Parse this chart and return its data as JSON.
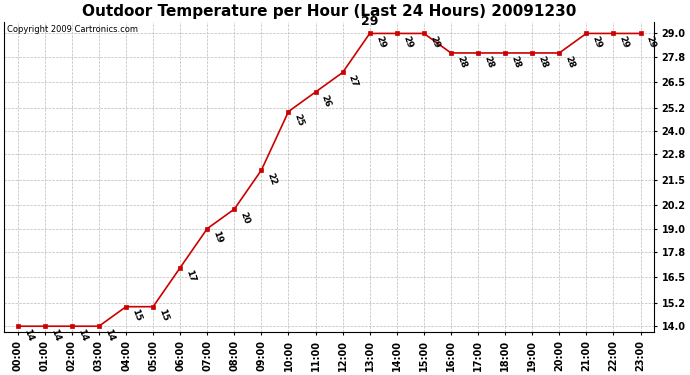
{
  "title": "Outdoor Temperature per Hour (Last 24 Hours) 20091230",
  "copyright_text": "Copyright 2009 Cartronics.com",
  "hours": [
    "00:00",
    "01:00",
    "02:00",
    "03:00",
    "04:00",
    "05:00",
    "06:00",
    "07:00",
    "08:00",
    "09:00",
    "10:00",
    "11:00",
    "12:00",
    "13:00",
    "14:00",
    "15:00",
    "16:00",
    "17:00",
    "18:00",
    "19:00",
    "20:00",
    "21:00",
    "22:00",
    "23:00"
  ],
  "temps": [
    14,
    14,
    14,
    14,
    15,
    15,
    17,
    19,
    20,
    22,
    25,
    26,
    27,
    29,
    29,
    29,
    28,
    28,
    28,
    28,
    28,
    29,
    29,
    29
  ],
  "peak_hour_index": 13,
  "peak_label": "29",
  "line_color": "#cc0000",
  "marker_color": "#cc0000",
  "bg_color": "#ffffff",
  "grid_color": "#bbbbbb",
  "yticks": [
    14.0,
    15.2,
    16.5,
    17.8,
    19.0,
    20.2,
    21.5,
    22.8,
    24.0,
    25.2,
    26.5,
    27.8,
    29.0
  ],
  "ylim_min": 13.7,
  "ylim_max": 29.6,
  "title_fontsize": 11,
  "label_fontsize": 7,
  "annotation_fontsize": 6.5,
  "copyright_fontsize": 6
}
